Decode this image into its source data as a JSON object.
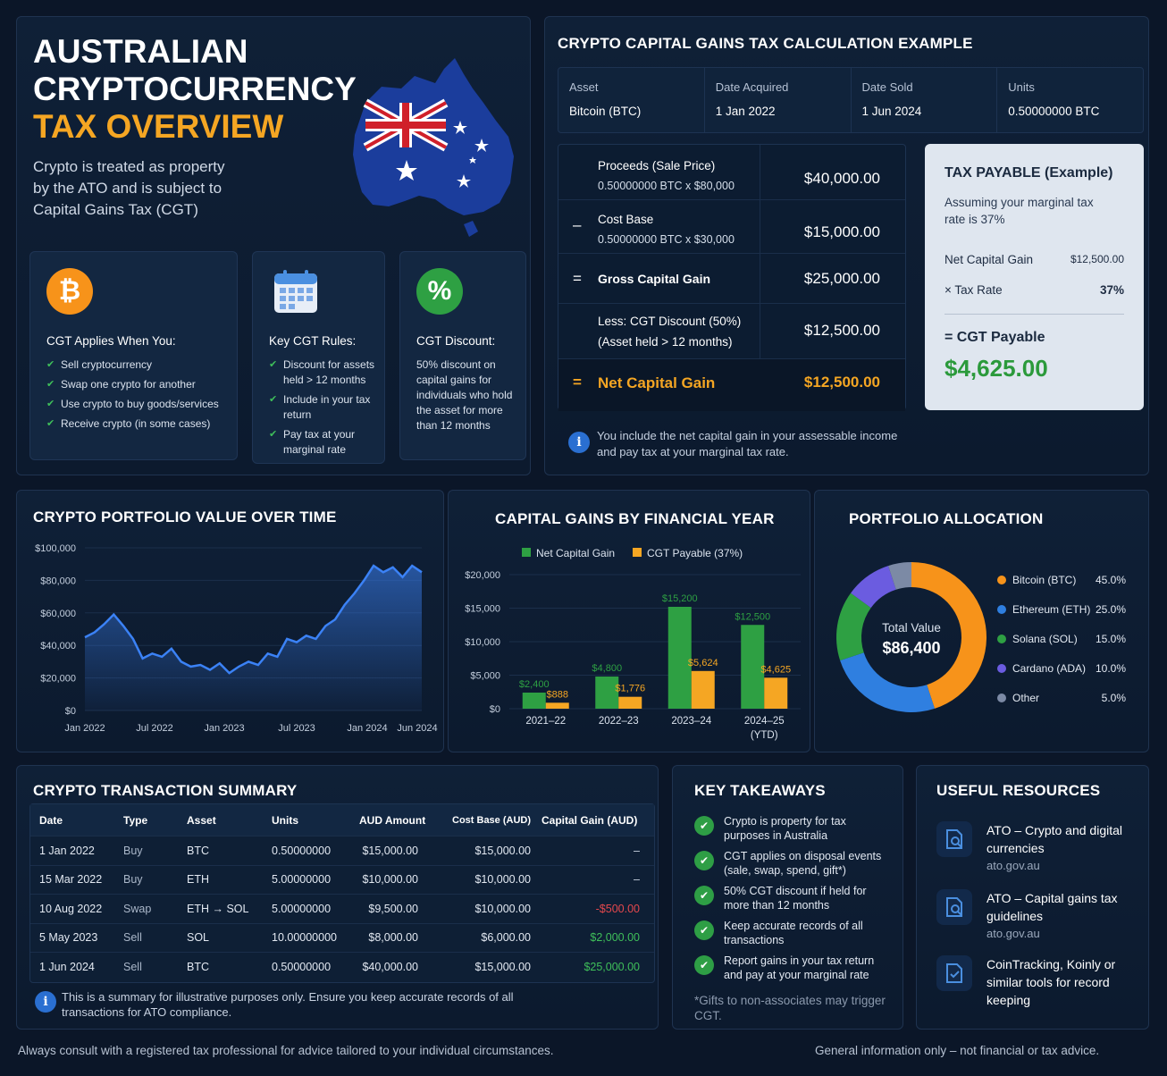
{
  "hero": {
    "title_line1": "AUSTRALIAN",
    "title_line2": "CRYPTOCURRENCY",
    "title_line3": "TAX OVERVIEW",
    "description": "Crypto is treated as property by the ATO and is subject to Capital Gains Tax (CGT)",
    "cards": [
      {
        "icon": "bitcoin-icon",
        "icon_text": "₿",
        "icon_color": "#f7931a",
        "title": "CGT Applies When You:",
        "items": [
          "Sell cryptocurrency",
          "Swap one crypto for another",
          "Use crypto to buy goods/services",
          "Receive crypto (in some cases)"
        ]
      },
      {
        "icon": "calendar-icon",
        "icon_color": "#4a8fe0",
        "title": "Key CGT Rules:",
        "items": [
          "Discount for assets held > 12 months",
          "Include in your tax return",
          "Pay tax at your marginal rate"
        ]
      },
      {
        "icon": "percent-icon",
        "icon_text": "%",
        "icon_color": "#2ea043",
        "title": "CGT Discount:",
        "text": "50% discount on capital gains for individuals who hold the asset for more than 12 months"
      }
    ]
  },
  "calc": {
    "title": "CRYPTO CAPITAL GAINS TAX CALCULATION EXAMPLE",
    "top": [
      {
        "label": "Asset",
        "value": "Bitcoin (BTC)"
      },
      {
        "label": "Date Acquired",
        "value": "1 Jan 2022"
      },
      {
        "label": "Date Sold",
        "value": "1 Jun 2024"
      },
      {
        "label": "Units",
        "value": "0.50000000 BTC"
      }
    ],
    "rows": [
      {
        "op": "",
        "label": "Proceeds (Sale Price)",
        "sub": "0.50000000 BTC x $80,000",
        "amount": "$40,000.00"
      },
      {
        "op": "–",
        "label": "Cost Base",
        "sub": "0.50000000 BTC x $30,000",
        "amount": "$15,000.00"
      },
      {
        "op": "=",
        "label": "Gross Capital Gain",
        "sub": "",
        "amount": "$25,000.00"
      },
      {
        "op": "",
        "label": "Less: CGT Discount (50%)",
        "sub": "(Asset held > 12 months)",
        "amount": "$12,500.00"
      },
      {
        "op": "=",
        "label": "Net Capital Gain",
        "sub": "",
        "amount": "$12,500.00"
      }
    ],
    "tax": {
      "title": "TAX PAYABLE (Example)",
      "assumption": "Assuming your marginal tax rate is 37%",
      "net_label": "Net Capital Gain",
      "net_value": "$12,500.00",
      "rate_label": "× Tax Rate",
      "rate_value": "37%",
      "payable_label": "= CGT Payable",
      "payable_value": "$4,625.00"
    },
    "note": "You include the net capital gain in your assessable income and pay tax at your marginal tax rate."
  },
  "chart_data": [
    {
      "type": "area",
      "title": "CRYPTO PORTFOLIO VALUE OVER TIME",
      "x_ticks": [
        "Jan 2022",
        "Jul 2022",
        "Jan 2023",
        "Jul 2023",
        "Jan 2024",
        "Jun 2024"
      ],
      "y_ticks": [
        "$100,000",
        "$80,000",
        "$60,000",
        "$40,000",
        "$20,000",
        "$0"
      ],
      "ylim": [
        0,
        100000
      ],
      "color": "#3b82f6",
      "values": [
        45000,
        48000,
        53000,
        59000,
        52000,
        44000,
        32000,
        35000,
        33000,
        38000,
        30000,
        27000,
        28000,
        25000,
        29000,
        23000,
        27000,
        30000,
        28000,
        35000,
        33000,
        44000,
        42000,
        46000,
        44000,
        52000,
        56000,
        65000,
        72000,
        80000,
        89000,
        85000,
        88000,
        82000,
        89000,
        85000
      ]
    },
    {
      "type": "bar",
      "title": "CAPITAL GAINS BY FINANCIAL YEAR",
      "categories": [
        "2021–22",
        "2022–23",
        "2023–24",
        "2024–25"
      ],
      "category_sub": [
        "",
        "",
        "",
        "(YTD)"
      ],
      "y_ticks": [
        "$20,000",
        "$15,000",
        "$10,000",
        "$5,000",
        "$0"
      ],
      "ylim": [
        0,
        20000
      ],
      "series": [
        {
          "name": "Net Capital Gain",
          "color": "#2ea043",
          "values": [
            2400,
            4800,
            15200,
            12500
          ],
          "labels": [
            "$2,400",
            "$4,800",
            "$15,200",
            "$12,500"
          ]
        },
        {
          "name": "CGT Payable (37%)",
          "color": "#f5a623",
          "values": [
            888,
            1776,
            5624,
            4625
          ],
          "labels": [
            "$888",
            "$1,776",
            "$5,624",
            "$4,625"
          ]
        }
      ]
    },
    {
      "type": "pie",
      "title": "PORTFOLIO ALLOCATION",
      "center_label": "Total Value",
      "center_value": "$86,400",
      "slices": [
        {
          "name": "Bitcoin (BTC)",
          "value": 45.0,
          "label": "45.0%",
          "color": "#f7931a"
        },
        {
          "name": "Ethereum (ETH)",
          "value": 25.0,
          "label": "25.0%",
          "color": "#2f7fe0"
        },
        {
          "name": "Solana (SOL)",
          "value": 15.0,
          "label": "15.0%",
          "color": "#2ea043"
        },
        {
          "name": "Cardano (ADA)",
          "value": 10.0,
          "label": "10.0%",
          "color": "#6b5ce0"
        },
        {
          "name": "Other",
          "value": 5.0,
          "label": "5.0%",
          "color": "#7c8aa5"
        }
      ]
    }
  ],
  "transactions": {
    "title": "CRYPTO TRANSACTION SUMMARY",
    "headers": [
      "Date",
      "Type",
      "Asset",
      "Units",
      "AUD Amount",
      "Cost Base (AUD)",
      "Capital Gain (AUD)"
    ],
    "rows": [
      [
        "1 Jan 2022",
        "Buy",
        "BTC",
        "0.50000000",
        "$15,000.00",
        "$15,000.00",
        "–"
      ],
      [
        "15 Mar 2022",
        "Buy",
        "ETH",
        "5.00000000",
        "$10,000.00",
        "$10,000.00",
        "–"
      ],
      [
        "10 Aug 2022",
        "Swap",
        "ETH → SOL",
        "5.00000000",
        "$9,500.00",
        "$10,000.00",
        "-$500.00"
      ],
      [
        "5 May 2023",
        "Sell",
        "SOL",
        "10.00000000",
        "$8,000.00",
        "$6,000.00",
        "$2,000.00"
      ],
      [
        "1 Jun 2024",
        "Sell",
        "BTC",
        "0.50000000",
        "$40,000.00",
        "$15,000.00",
        "$25,000.00"
      ]
    ],
    "gain_colors": [
      "#c8d2e1",
      "#c8d2e1",
      "#e5484d",
      "#3fbf5a",
      "#3fbf5a"
    ],
    "note": "This is a summary for illustrative purposes only. Ensure you keep accurate records of all transactions for ATO compliance."
  },
  "takeaways": {
    "title": "KEY TAKEAWAYS",
    "items": [
      "Crypto is property for tax purposes in Australia",
      "CGT applies on disposal events (sale, swap, spend, gift*)",
      "50% CGT discount if held for more than 12 months",
      "Keep accurate records of all transactions",
      "Report gains in your tax return and pay at your marginal rate"
    ],
    "footnote": "*Gifts to non-associates may trigger CGT."
  },
  "resources": {
    "title": "USEFUL RESOURCES",
    "items": [
      {
        "title": "ATO – Crypto and digital currencies",
        "url": "ato.gov.au"
      },
      {
        "title": "ATO – Capital gains tax guidelines",
        "url": "ato.gov.au"
      },
      {
        "title": "CoinTracking, Koinly or similar tools for record keeping",
        "url": ""
      }
    ]
  },
  "footer": {
    "left": "Always consult with a registered tax professional for advice tailored to your individual circumstances.",
    "right": "General information only – not financial or tax advice."
  }
}
